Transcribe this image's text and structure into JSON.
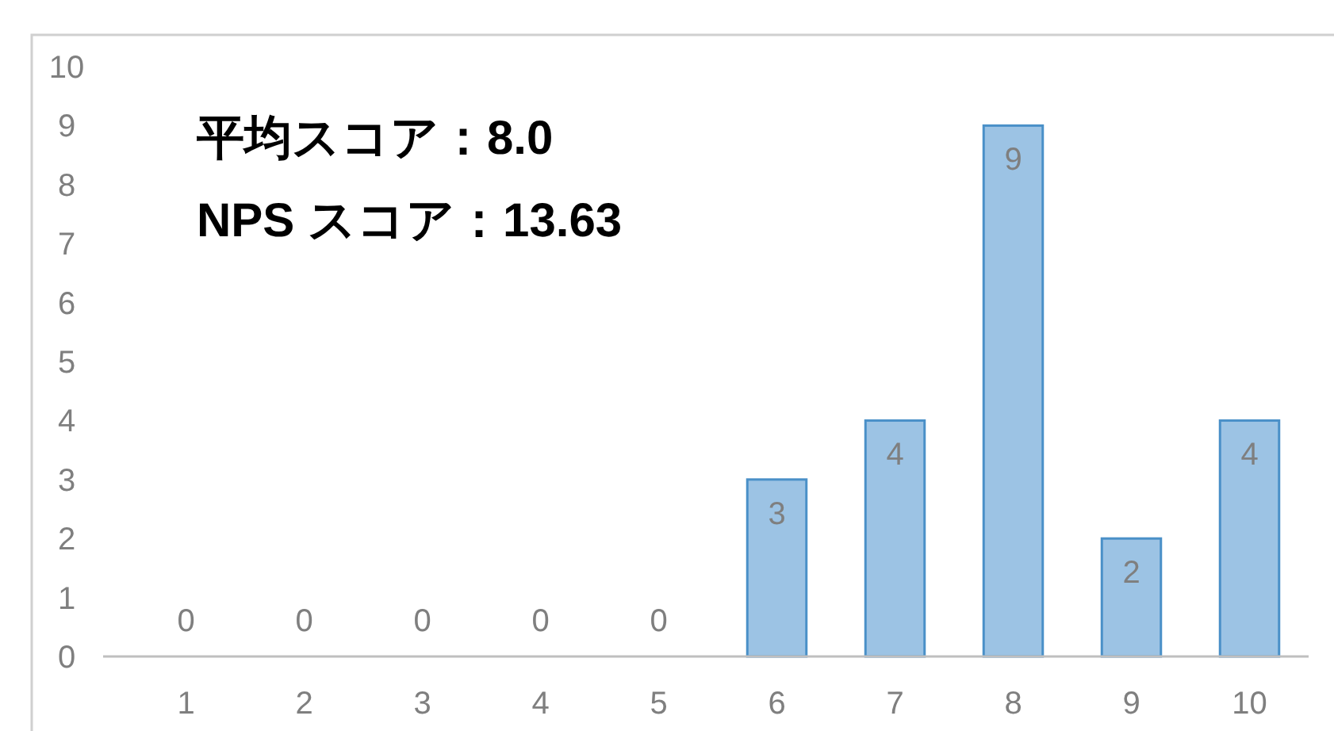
{
  "chart_data": {
    "type": "bar",
    "categories": [
      "1",
      "2",
      "3",
      "4",
      "5",
      "6",
      "7",
      "8",
      "9",
      "10"
    ],
    "values": [
      0,
      0,
      0,
      0,
      0,
      3,
      4,
      9,
      2,
      4
    ],
    "color": "#9cc3e4",
    "ylim": [
      0,
      10
    ],
    "yticks": [
      0,
      1,
      2,
      3,
      4,
      5,
      6,
      7,
      8,
      9,
      10
    ],
    "data_labels": true,
    "grid": false,
    "annotations": [
      "平均スコア：8.0",
      "NPS スコア：13.63"
    ]
  }
}
